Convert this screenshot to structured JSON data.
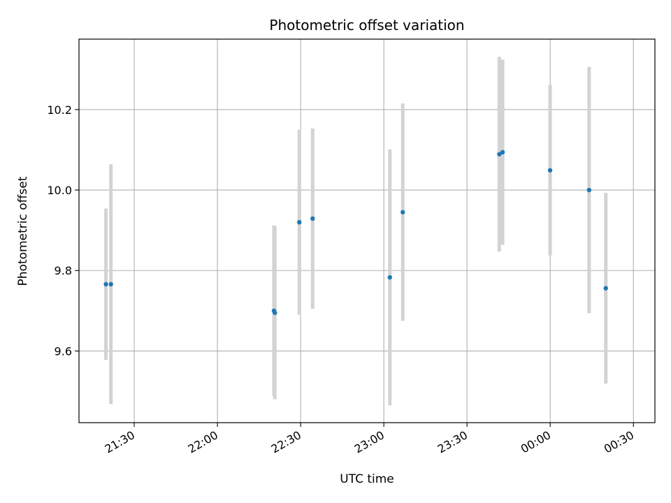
{
  "chart_data": {
    "type": "scatter",
    "title": "Photometric offset variation",
    "xlabel": "UTC time",
    "ylabel": "Photometric offset",
    "x_tick_labels": [
      "21:30",
      "22:00",
      "22:30",
      "23:00",
      "23:30",
      "00:00",
      "00:30"
    ],
    "y_tick_labels": [
      "9.6",
      "9.8",
      "10.0",
      "10.2"
    ],
    "y_ticks": [
      9.6,
      9.8,
      10.0,
      10.2
    ],
    "xlim": [
      "21:10:05",
      "00:37:45"
    ],
    "ylim": [
      9.422,
      10.375
    ],
    "grid": true,
    "legend": "none",
    "colors": {
      "marker": "#1f77b4",
      "errorbar": "#d3d3d3",
      "grid": "#b0b0b0"
    },
    "x": [
      "21:19:48",
      "21:21:36",
      "22:20:23",
      "22:20:43",
      "22:29:31",
      "22:34:20",
      "23:02:11",
      "23:06:50",
      "23:41:38",
      "23:42:50",
      "23:59:57",
      "00:14:01",
      "00:20:02"
    ],
    "y": [
      9.766,
      9.766,
      9.7,
      9.695,
      9.92,
      9.929,
      9.783,
      9.945,
      10.089,
      10.094,
      10.049,
      10.0,
      9.756
    ],
    "y_err": [
      0.188,
      0.298,
      0.212,
      0.215,
      0.23,
      0.224,
      0.318,
      0.27,
      0.242,
      0.23,
      0.212,
      0.306,
      0.237
    ]
  }
}
